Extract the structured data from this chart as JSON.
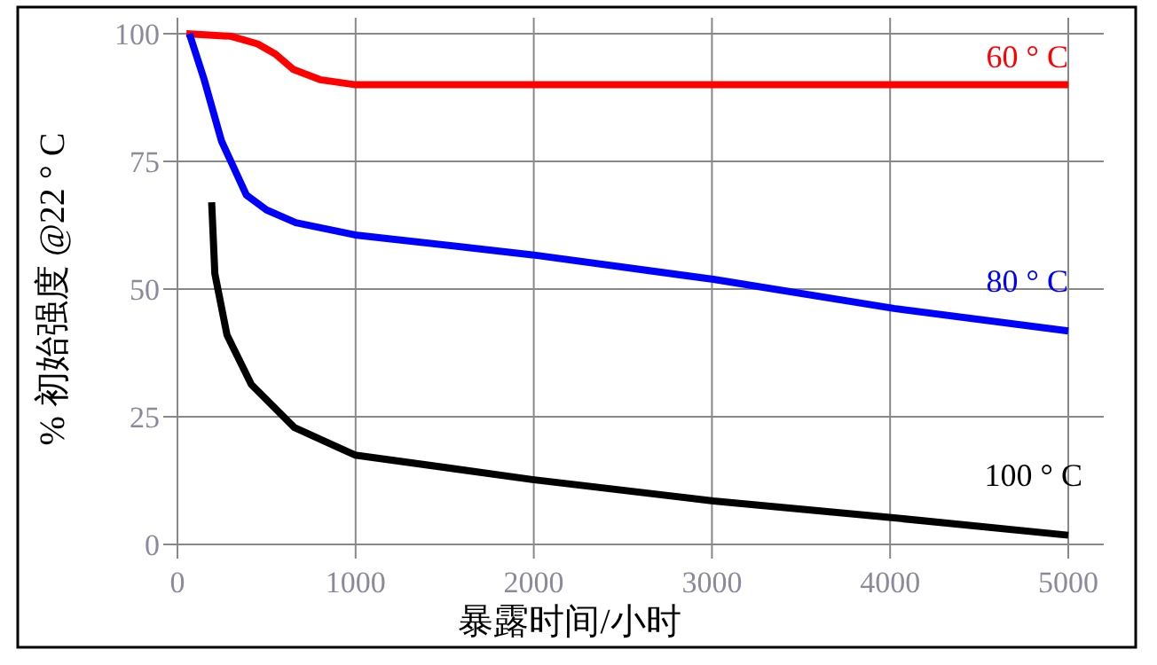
{
  "chart_data": {
    "type": "line",
    "xlabel": "暴露时间/小时",
    "ylabel": "% 初始强度 @22 ° C",
    "xlim": [
      0,
      5000
    ],
    "ylim": [
      0,
      100
    ],
    "xticks": [
      0,
      1000,
      2000,
      3000,
      4000,
      5000
    ],
    "yticks": [
      0,
      25,
      50,
      75,
      100
    ],
    "grid": true,
    "line_style": "solid",
    "series": [
      {
        "name": "60 ° C",
        "color": "#ff0000",
        "x": [
          50,
          300,
          450,
          550,
          650,
          800,
          1000,
          2000,
          3000,
          4000,
          5000
        ],
        "values": [
          100,
          99.5,
          98,
          96,
          93,
          91,
          90,
          90,
          90,
          90,
          90
        ]
      },
      {
        "name": "80 ° C",
        "color": "#0000ff",
        "x": [
          67,
          150,
          247,
          387,
          500,
          664,
          996,
          1992,
          3008,
          4022,
          5000
        ],
        "values": [
          100,
          91,
          79,
          68.4,
          65.5,
          63,
          60.6,
          56.7,
          51.9,
          46.2,
          41.8
        ]
      },
      {
        "name": "100 ° C",
        "color": "#000000",
        "x": [
          192,
          210,
          278,
          415,
          656,
          996,
          1992,
          3008,
          4022,
          5000
        ],
        "values": [
          67,
          53,
          41,
          31.3,
          22.9,
          17.5,
          12.7,
          8.5,
          5.2,
          1.8
        ]
      }
    ]
  }
}
